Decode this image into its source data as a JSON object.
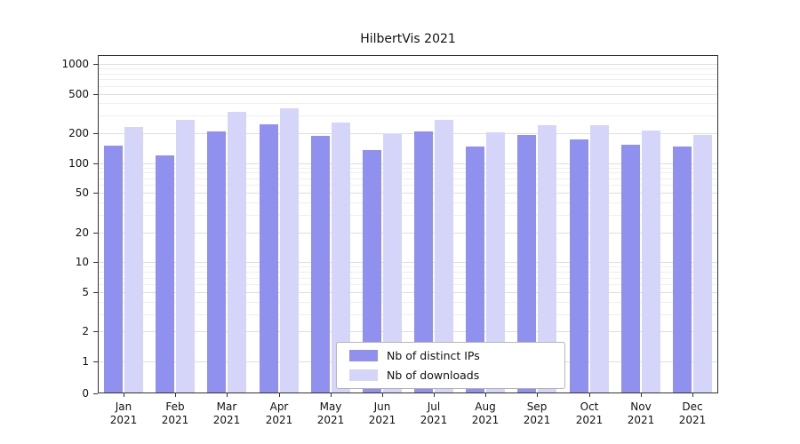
{
  "chart_data": {
    "type": "bar",
    "title": "HilbertVis 2021",
    "categories": [
      "Jan",
      "Feb",
      "Mar",
      "Apr",
      "May",
      "Jun",
      "Jul",
      "Aug",
      "Sep",
      "Oct",
      "Nov",
      "Dec"
    ],
    "year_label": "2021",
    "series": [
      {
        "name": "Nb of distinct IPs",
        "color": "#9090ee",
        "values": [
          150,
          120,
          210,
          245,
          190,
          135,
          207,
          147,
          192,
          175,
          152,
          148
        ]
      },
      {
        "name": "Nb of downloads",
        "color": "#d5d5f9",
        "values": [
          230,
          270,
          330,
          360,
          256,
          197,
          270,
          205,
          243,
          240,
          214,
          193
        ]
      }
    ],
    "yscale": "symlog",
    "yticks": [
      0,
      1,
      2,
      5,
      10,
      20,
      50,
      100,
      200,
      500,
      1000
    ],
    "ylim": [
      0,
      1000
    ],
    "xlabel": "",
    "ylabel": "",
    "grid": true,
    "legend_position": "lower center"
  },
  "colors": {
    "grid_minor": "#efefef",
    "grid_major": "#dfdfdf",
    "axis": "#333333",
    "background": "#ffffff"
  }
}
